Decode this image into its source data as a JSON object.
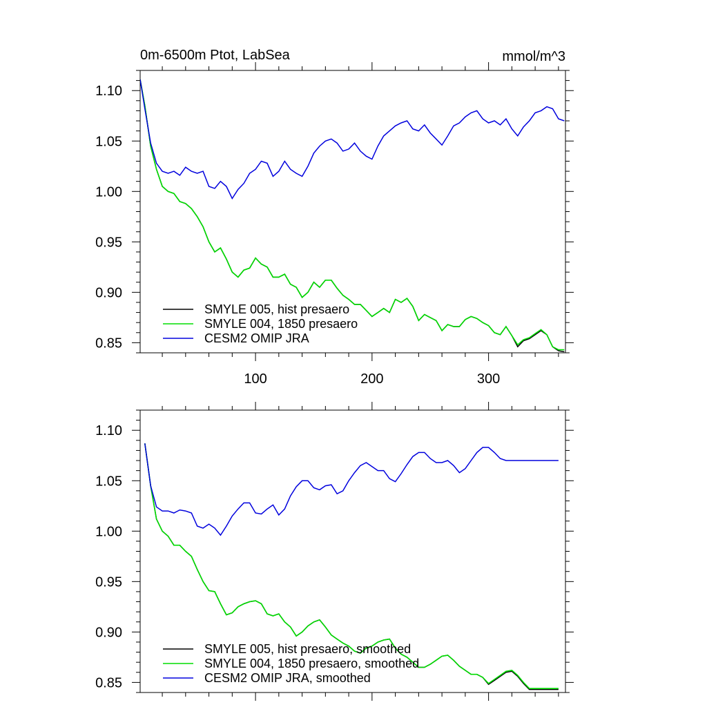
{
  "figure": {
    "title_left": "0m-6500m Ptot, LabSea",
    "title_right": "mmol/m^3"
  },
  "chart_data": [
    {
      "type": "line",
      "title": "0m-6500m Ptot, LabSea",
      "units": "mmol/m^3",
      "xlim": [
        1,
        366
      ],
      "ylim": [
        0.84,
        1.12
      ],
      "xticks": [
        100,
        200,
        300
      ],
      "yticks": [
        0.85,
        0.9,
        0.95,
        1.0,
        1.05,
        1.1
      ],
      "ytick_labels": [
        "0.85",
        "0.90",
        "0.95",
        "1.00",
        "1.05",
        "1.10"
      ],
      "xtick_labels": [
        "100",
        "200",
        "300"
      ],
      "series_x": [
        1,
        5,
        10,
        15,
        20,
        25,
        30,
        35,
        40,
        45,
        50,
        55,
        60,
        65,
        70,
        75,
        80,
        85,
        90,
        95,
        100,
        105,
        110,
        115,
        120,
        125,
        130,
        135,
        140,
        145,
        150,
        155,
        160,
        165,
        170,
        175,
        180,
        185,
        190,
        195,
        200,
        205,
        210,
        215,
        220,
        225,
        230,
        235,
        240,
        245,
        250,
        255,
        260,
        265,
        270,
        275,
        280,
        285,
        290,
        295,
        300,
        305,
        310,
        315,
        320,
        325,
        330,
        335,
        340,
        345,
        350,
        355,
        360,
        365
      ],
      "series": [
        {
          "name": "SMYLE 005, hist presaero",
          "color": "#000000",
          "values": [
            1.111,
            1.085,
            1.045,
            1.022,
            1.005,
            1.0,
            0.998,
            0.99,
            0.988,
            0.983,
            0.975,
            0.965,
            0.95,
            0.94,
            0.944,
            0.933,
            0.92,
            0.915,
            0.922,
            0.924,
            0.934,
            0.928,
            0.925,
            0.915,
            0.915,
            0.918,
            0.908,
            0.905,
            0.895,
            0.9,
            0.91,
            0.905,
            0.912,
            0.912,
            0.904,
            0.897,
            0.893,
            0.888,
            0.888,
            0.882,
            0.876,
            0.88,
            0.884,
            0.88,
            0.893,
            0.89,
            0.894,
            0.886,
            0.872,
            0.878,
            0.875,
            0.872,
            0.862,
            0.868,
            0.866,
            0.866,
            0.873,
            0.876,
            0.874,
            0.87,
            0.867,
            0.86,
            0.858,
            0.866,
            0.857,
            0.846,
            0.852,
            0.854,
            0.858,
            0.862,
            0.858,
            0.846,
            0.842,
            0.841
          ]
        },
        {
          "name": "SMYLE 004, 1850 presaero",
          "color": "#00dd00",
          "values": [
            1.111,
            1.085,
            1.045,
            1.022,
            1.005,
            1.0,
            0.998,
            0.99,
            0.988,
            0.983,
            0.975,
            0.965,
            0.95,
            0.94,
            0.944,
            0.933,
            0.92,
            0.915,
            0.922,
            0.924,
            0.934,
            0.928,
            0.925,
            0.915,
            0.915,
            0.918,
            0.908,
            0.905,
            0.895,
            0.9,
            0.91,
            0.905,
            0.912,
            0.912,
            0.904,
            0.897,
            0.893,
            0.888,
            0.888,
            0.882,
            0.876,
            0.88,
            0.884,
            0.88,
            0.893,
            0.89,
            0.894,
            0.886,
            0.872,
            0.878,
            0.875,
            0.872,
            0.862,
            0.868,
            0.866,
            0.866,
            0.873,
            0.876,
            0.874,
            0.87,
            0.867,
            0.86,
            0.858,
            0.866,
            0.857,
            0.848,
            0.853,
            0.855,
            0.859,
            0.863,
            0.858,
            0.846,
            0.843,
            0.843
          ]
        },
        {
          "name": "CESM2 OMIP JRA",
          "color": "#0000dd",
          "values": [
            1.111,
            1.082,
            1.048,
            1.028,
            1.02,
            1.018,
            1.02,
            1.016,
            1.024,
            1.02,
            1.018,
            1.02,
            1.005,
            1.003,
            1.01,
            1.005,
            0.993,
            1.002,
            1.008,
            1.018,
            1.022,
            1.03,
            1.028,
            1.015,
            1.02,
            1.03,
            1.022,
            1.018,
            1.015,
            1.025,
            1.038,
            1.045,
            1.05,
            1.052,
            1.048,
            1.04,
            1.042,
            1.048,
            1.04,
            1.035,
            1.032,
            1.045,
            1.055,
            1.06,
            1.065,
            1.068,
            1.07,
            1.062,
            1.06,
            1.066,
            1.058,
            1.052,
            1.046,
            1.055,
            1.065,
            1.068,
            1.074,
            1.078,
            1.08,
            1.072,
            1.068,
            1.07,
            1.066,
            1.072,
            1.062,
            1.055,
            1.064,
            1.07,
            1.078,
            1.08,
            1.084,
            1.082,
            1.072,
            1.07
          ]
        }
      ],
      "legend": {
        "placement": "bottom-left"
      }
    },
    {
      "type": "line",
      "xlim": [
        1,
        366
      ],
      "ylim": [
        0.84,
        1.12
      ],
      "xticks": [
        100,
        200,
        300
      ],
      "yticks": [
        0.85,
        0.9,
        0.95,
        1.0,
        1.05,
        1.1
      ],
      "ytick_labels": [
        "0.85",
        "0.90",
        "0.95",
        "1.00",
        "1.05",
        "1.10"
      ],
      "series_x": [
        5,
        10,
        15,
        20,
        25,
        30,
        35,
        40,
        45,
        50,
        55,
        60,
        65,
        70,
        75,
        80,
        85,
        90,
        95,
        100,
        105,
        110,
        115,
        120,
        125,
        130,
        135,
        140,
        145,
        150,
        155,
        160,
        165,
        170,
        175,
        180,
        185,
        190,
        195,
        200,
        205,
        210,
        215,
        220,
        225,
        230,
        235,
        240,
        245,
        250,
        255,
        260,
        265,
        270,
        275,
        280,
        285,
        290,
        295,
        300,
        305,
        310,
        315,
        320,
        325,
        330,
        335,
        340,
        345,
        350,
        355,
        360
      ],
      "series": [
        {
          "name": "SMYLE 005, hist presaero, smoothed",
          "color": "#000000",
          "values": [
            1.087,
            1.045,
            1.012,
            1.0,
            0.995,
            0.986,
            0.986,
            0.98,
            0.975,
            0.962,
            0.95,
            0.941,
            0.94,
            0.928,
            0.917,
            0.919,
            0.925,
            0.928,
            0.93,
            0.931,
            0.928,
            0.918,
            0.916,
            0.918,
            0.91,
            0.905,
            0.896,
            0.9,
            0.906,
            0.91,
            0.912,
            0.905,
            0.897,
            0.893,
            0.889,
            0.886,
            0.881,
            0.879,
            0.884,
            0.886,
            0.89,
            0.892,
            0.893,
            0.884,
            0.878,
            0.875,
            0.87,
            0.865,
            0.865,
            0.868,
            0.872,
            0.876,
            0.877,
            0.872,
            0.866,
            0.862,
            0.858,
            0.858,
            0.855,
            0.848,
            0.852,
            0.856,
            0.86,
            0.861,
            0.856,
            0.849,
            0.843,
            0.843,
            0.843,
            0.843,
            0.843,
            0.843
          ]
        },
        {
          "name": "SMYLE 004, 1850 presaero, smoothed",
          "color": "#00dd00",
          "values": [
            1.087,
            1.045,
            1.012,
            1.0,
            0.995,
            0.986,
            0.986,
            0.98,
            0.975,
            0.962,
            0.95,
            0.941,
            0.94,
            0.928,
            0.917,
            0.919,
            0.925,
            0.928,
            0.93,
            0.931,
            0.928,
            0.918,
            0.916,
            0.918,
            0.91,
            0.905,
            0.896,
            0.9,
            0.906,
            0.91,
            0.912,
            0.905,
            0.897,
            0.893,
            0.889,
            0.886,
            0.881,
            0.879,
            0.884,
            0.886,
            0.89,
            0.892,
            0.893,
            0.884,
            0.878,
            0.875,
            0.87,
            0.865,
            0.865,
            0.868,
            0.872,
            0.876,
            0.877,
            0.872,
            0.866,
            0.862,
            0.858,
            0.858,
            0.855,
            0.849,
            0.853,
            0.857,
            0.861,
            0.862,
            0.857,
            0.85,
            0.844,
            0.844,
            0.844,
            0.844,
            0.844,
            0.844
          ]
        },
        {
          "name": "CESM2 OMIP JRA, smoothed",
          "color": "#0000dd",
          "values": [
            1.087,
            1.045,
            1.024,
            1.02,
            1.02,
            1.018,
            1.021,
            1.02,
            1.018,
            1.005,
            1.003,
            1.007,
            1.003,
            0.996,
            1.005,
            1.015,
            1.022,
            1.028,
            1.028,
            1.018,
            1.017,
            1.022,
            1.026,
            1.016,
            1.022,
            1.035,
            1.044,
            1.05,
            1.05,
            1.043,
            1.041,
            1.045,
            1.046,
            1.037,
            1.04,
            1.05,
            1.058,
            1.065,
            1.068,
            1.064,
            1.06,
            1.06,
            1.052,
            1.049,
            1.057,
            1.066,
            1.074,
            1.078,
            1.078,
            1.072,
            1.068,
            1.068,
            1.07,
            1.065,
            1.058,
            1.062,
            1.07,
            1.078,
            1.083,
            1.083,
            1.078,
            1.072,
            1.07,
            1.07,
            1.07,
            1.07,
            1.07,
            1.07,
            1.07,
            1.07,
            1.07,
            1.07
          ]
        }
      ],
      "legend": {
        "placement": "bottom-left"
      }
    }
  ]
}
